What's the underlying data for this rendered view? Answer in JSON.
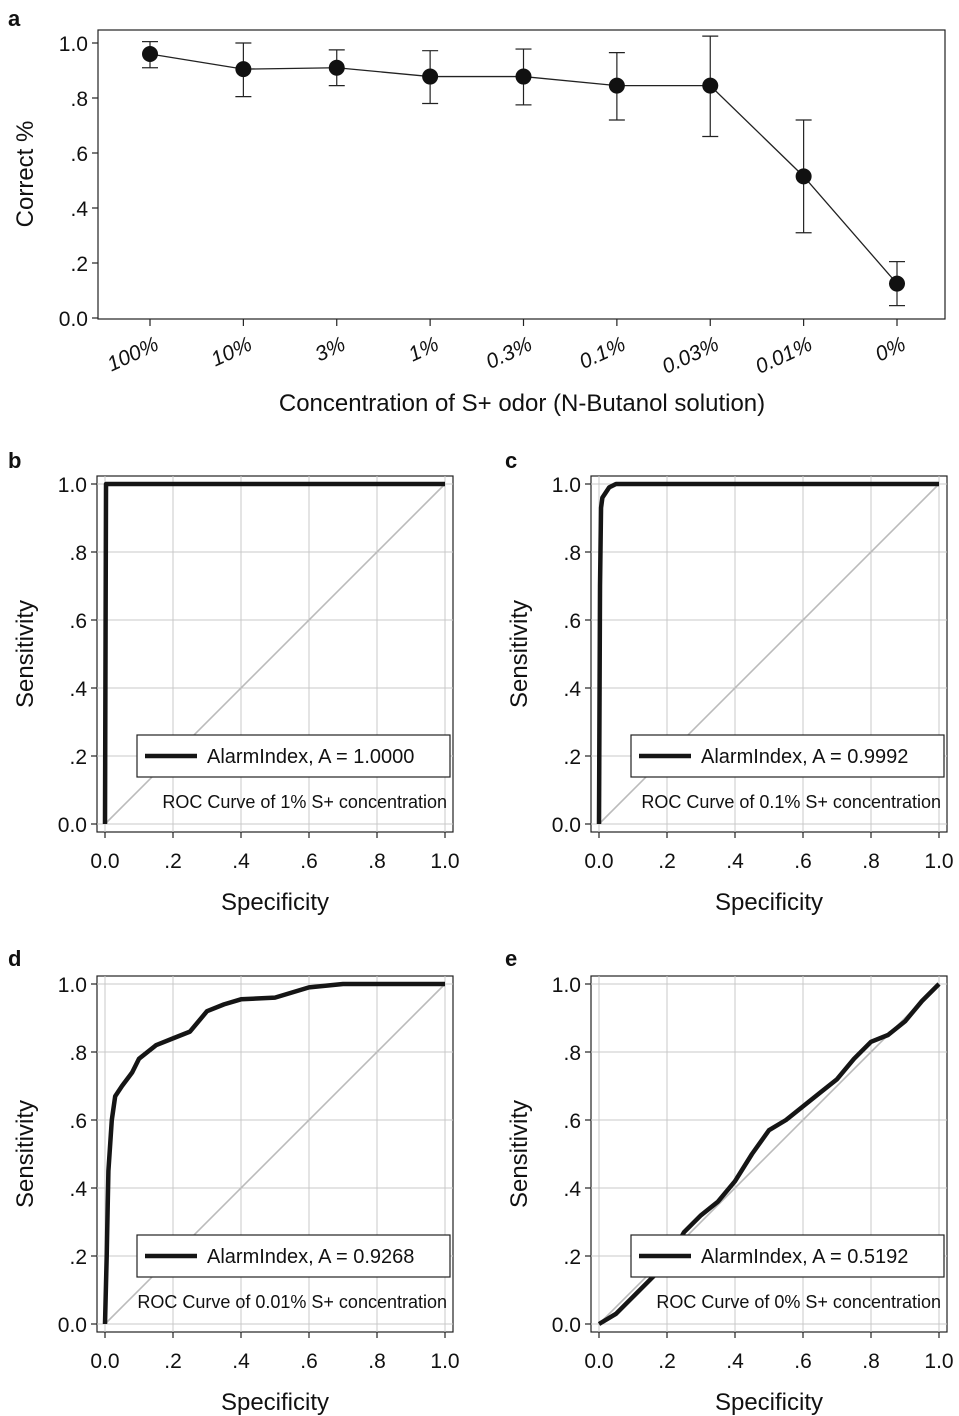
{
  "chart_data": [
    {
      "panel": "a",
      "type": "line",
      "categories": [
        "100%",
        "10%",
        "3%",
        "1%",
        "0.3%",
        "0.1%",
        "0.03%",
        "0.01%",
        "0%"
      ],
      "series": [
        {
          "values": [
            0.96,
            0.905,
            0.91,
            0.878,
            0.878,
            0.845,
            0.845,
            0.515,
            0.125
          ],
          "error_low": [
            0.91,
            0.805,
            0.845,
            0.78,
            0.775,
            0.72,
            0.66,
            0.31,
            0.045
          ],
          "error_high": [
            1.005,
            1.0,
            0.975,
            0.972,
            0.978,
            0.965,
            1.025,
            0.72,
            0.205
          ]
        }
      ],
      "xlabel": "Concentration of S+ odor (N-Butanol solution)",
      "ylabel": "Correct %",
      "ylim": [
        0,
        1.0
      ],
      "yticks": [
        "0.0",
        ".2",
        ".4",
        ".6",
        ".8",
        "1.0"
      ],
      "grid": false
    },
    {
      "panel": "b",
      "type": "line",
      "xlabel": "Specificity",
      "ylabel": "Sensitivity",
      "xlim": [
        0,
        1
      ],
      "ylim": [
        0,
        1
      ],
      "ticks": [
        "0.0",
        ".2",
        ".4",
        ".6",
        ".8",
        "1.0"
      ],
      "grid": true,
      "legend": {
        "entry": "AlarmIndex, A = 1.0000",
        "placement": "bottom-right"
      },
      "caption": "ROC Curve of 1% S+ concentration",
      "curve": [
        [
          0,
          0
        ],
        [
          0.003,
          1.0
        ],
        [
          1.0,
          1.0
        ]
      ]
    },
    {
      "panel": "c",
      "type": "line",
      "xlabel": "Specificity",
      "ylabel": "Sensitivity",
      "xlim": [
        0,
        1
      ],
      "ylim": [
        0,
        1
      ],
      "ticks": [
        "0.0",
        ".2",
        ".4",
        ".6",
        ".8",
        "1.0"
      ],
      "grid": true,
      "legend": {
        "entry": "AlarmIndex, A = 0.9992",
        "placement": "bottom-right"
      },
      "caption": "ROC Curve of 0.1% S+ concentration",
      "curve": [
        [
          0,
          0
        ],
        [
          0.003,
          0.7
        ],
        [
          0.006,
          0.93
        ],
        [
          0.01,
          0.96
        ],
        [
          0.02,
          0.975
        ],
        [
          0.03,
          0.99
        ],
        [
          0.05,
          1.0
        ],
        [
          1.0,
          1.0
        ]
      ]
    },
    {
      "panel": "d",
      "type": "line",
      "xlabel": "Specificity",
      "ylabel": "Sensitivity",
      "xlim": [
        0,
        1
      ],
      "ylim": [
        0,
        1
      ],
      "ticks": [
        "0.0",
        ".2",
        ".4",
        ".6",
        ".8",
        "1.0"
      ],
      "grid": true,
      "legend": {
        "entry": "AlarmIndex, A = 0.9268",
        "placement": "bottom-right"
      },
      "caption": "ROC Curve of 0.01% S+ concentration",
      "curve": [
        [
          0,
          0
        ],
        [
          0.005,
          0.2
        ],
        [
          0.01,
          0.45
        ],
        [
          0.02,
          0.6
        ],
        [
          0.03,
          0.67
        ],
        [
          0.05,
          0.7
        ],
        [
          0.08,
          0.74
        ],
        [
          0.1,
          0.78
        ],
        [
          0.15,
          0.82
        ],
        [
          0.2,
          0.84
        ],
        [
          0.25,
          0.86
        ],
        [
          0.3,
          0.92
        ],
        [
          0.35,
          0.94
        ],
        [
          0.4,
          0.955
        ],
        [
          0.5,
          0.96
        ],
        [
          0.55,
          0.975
        ],
        [
          0.6,
          0.99
        ],
        [
          0.7,
          1.0
        ],
        [
          1.0,
          1.0
        ]
      ]
    },
    {
      "panel": "e",
      "type": "line",
      "xlabel": "Specificity",
      "ylabel": "Sensitivity",
      "xlim": [
        0,
        1
      ],
      "ylim": [
        0,
        1
      ],
      "ticks": [
        "0.0",
        ".2",
        ".4",
        ".6",
        ".8",
        "1.0"
      ],
      "grid": true,
      "legend": {
        "entry": "AlarmIndex, A = 0.5192",
        "placement": "bottom-right"
      },
      "caption": "ROC Curve of 0% S+ concentration",
      "curve": [
        [
          0,
          0
        ],
        [
          0.05,
          0.03
        ],
        [
          0.1,
          0.08
        ],
        [
          0.15,
          0.13
        ],
        [
          0.2,
          0.18
        ],
        [
          0.25,
          0.27
        ],
        [
          0.3,
          0.32
        ],
        [
          0.35,
          0.36
        ],
        [
          0.4,
          0.42
        ],
        [
          0.45,
          0.5
        ],
        [
          0.5,
          0.57
        ],
        [
          0.55,
          0.6
        ],
        [
          0.6,
          0.64
        ],
        [
          0.65,
          0.68
        ],
        [
          0.7,
          0.72
        ],
        [
          0.75,
          0.78
        ],
        [
          0.8,
          0.83
        ],
        [
          0.85,
          0.85
        ],
        [
          0.9,
          0.89
        ],
        [
          0.95,
          0.95
        ],
        [
          1.0,
          1.0
        ]
      ]
    }
  ]
}
